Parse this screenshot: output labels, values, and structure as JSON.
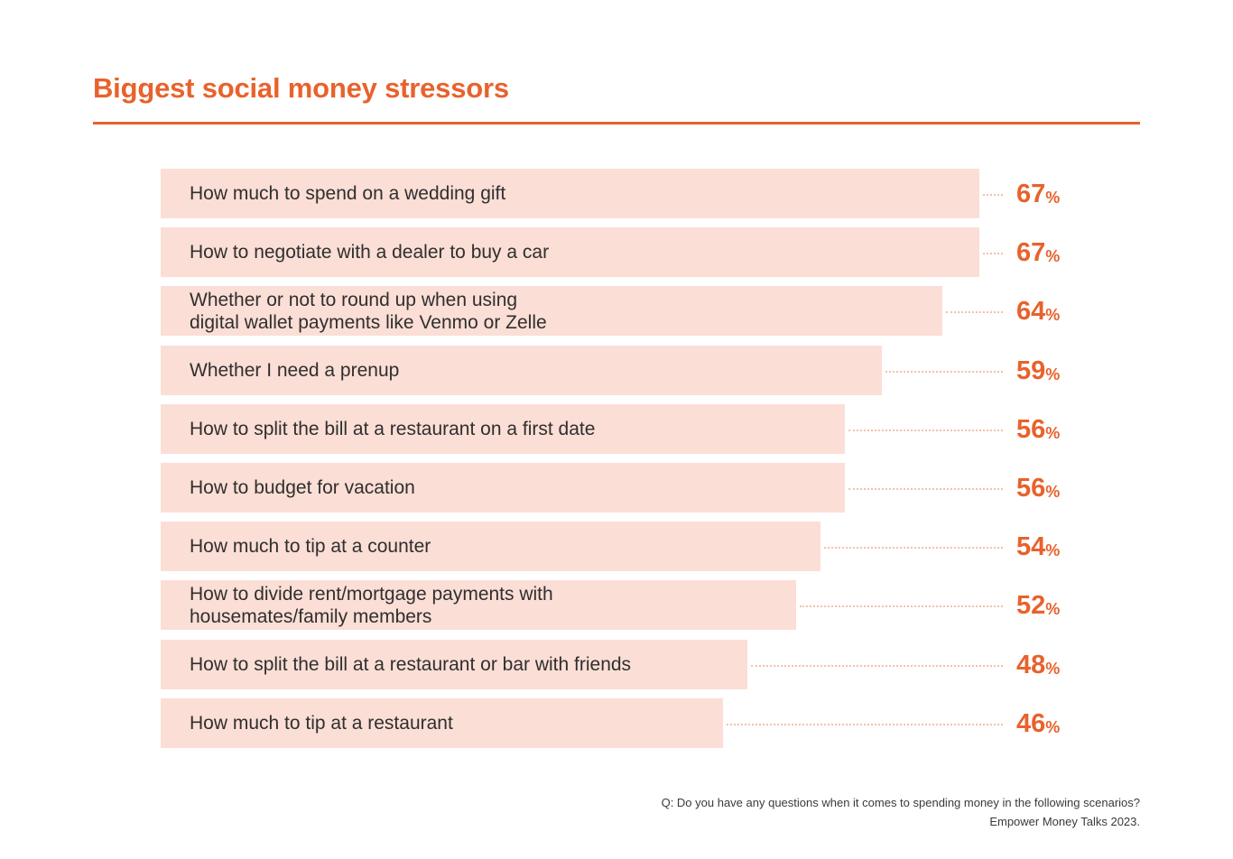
{
  "title": "Biggest social money stressors",
  "colors": {
    "accent": "#e8622c",
    "bar": "#fbded5",
    "leader": "#f4c0ac",
    "text": "#2f2f2f"
  },
  "chart_data": {
    "type": "bar",
    "orientation": "horizontal",
    "title": "Biggest social money stressors",
    "unit": "%",
    "xlim": [
      0,
      67
    ],
    "categories": [
      "How much to spend on a wedding gift",
      "How to negotiate with a dealer to buy a car",
      "Whether or not to round up when using\ndigital wallet payments like Venmo or Zelle",
      "Whether I need a prenup",
      "How to split the bill at a restaurant on a first date",
      "How to budget for vacation",
      "How much to tip at a counter",
      "How to divide rent/mortgage payments with\nhousemates/family members",
      "How to split the bill at a restaurant or bar with friends",
      "How much to tip at a restaurant"
    ],
    "values": [
      67,
      67,
      64,
      59,
      56,
      56,
      54,
      52,
      48,
      46
    ],
    "value_labels": [
      "67",
      "67",
      "64",
      "59",
      "56",
      "56",
      "54",
      "52",
      "48",
      "46"
    ],
    "percent_symbol": "%"
  },
  "footnote": {
    "question": "Q: Do you have any questions when it comes to spending money in the following scenarios?",
    "source": "Empower Money Talks 2023."
  }
}
